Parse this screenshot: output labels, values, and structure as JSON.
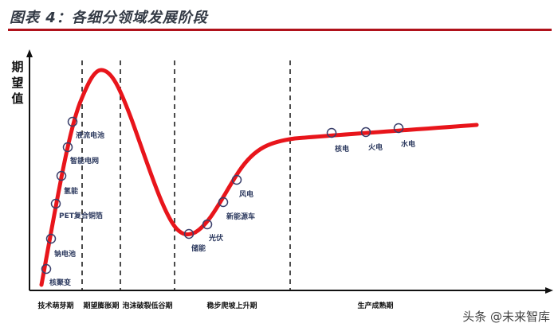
{
  "title": "图表 4：各细分领域发展阶段",
  "y_axis_label": "期望值",
  "stages": [
    "技术萌芽期",
    "期望膨胀期",
    "泡沫破裂低谷期",
    "稳步爬坡上升期",
    "生产成熟期"
  ],
  "points": [
    {
      "label": "核聚变"
    },
    {
      "label": "钠电池"
    },
    {
      "label": "PET复合铜箔"
    },
    {
      "label": "氢能"
    },
    {
      "label": "智能电网"
    },
    {
      "label": "液流电池"
    },
    {
      "label": "储能"
    },
    {
      "label": "光伏"
    },
    {
      "label": "新能源车"
    },
    {
      "label": "风电"
    },
    {
      "label": "核电"
    },
    {
      "label": "火电"
    },
    {
      "label": "水电"
    }
  ],
  "watermark": "头条 @未来智库",
  "colors": {
    "curve": "#e8151b",
    "accent": "#b0121b",
    "marker": "#3a3f6b"
  }
}
